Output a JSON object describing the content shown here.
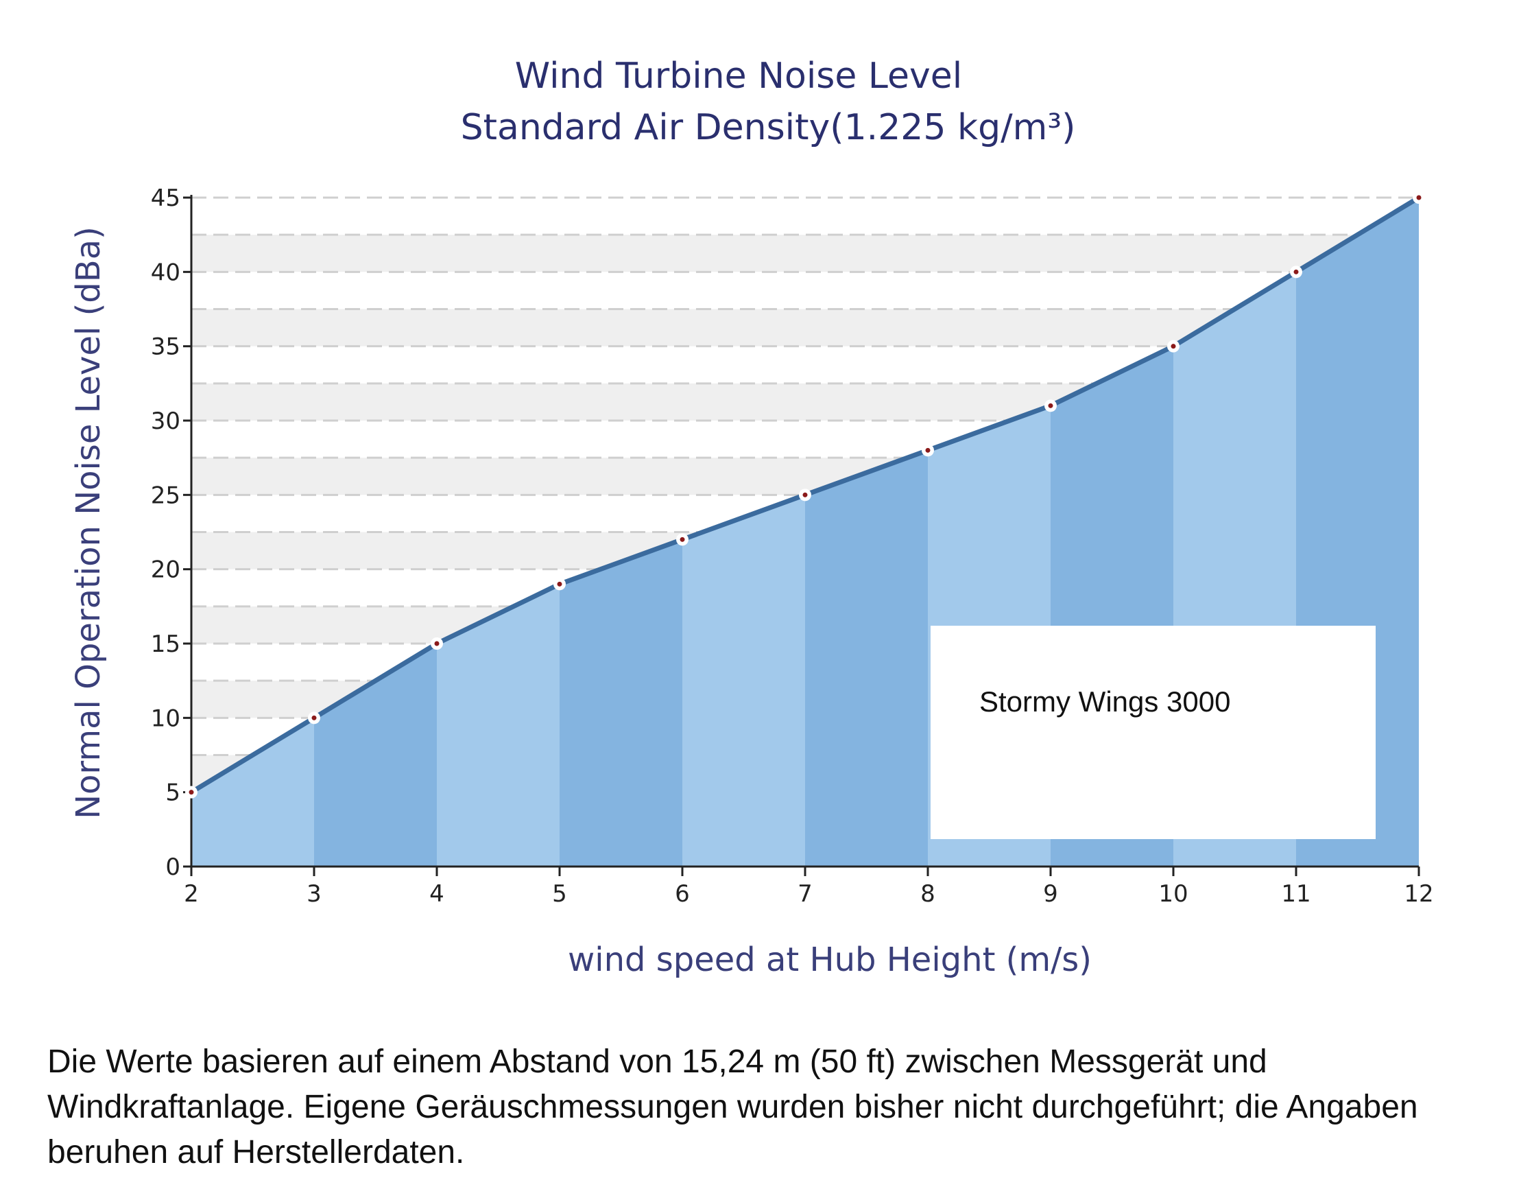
{
  "chart_data": {
    "type": "area",
    "title": "Wind Turbine Noise Level",
    "subtitle": "Standard Air Density(1.225 kg/m³)",
    "xlabel": "wind speed at Hub Height  (m/s)",
    "ylabel": "Normal Operation Noise  Level (dBa)",
    "x": [
      2,
      3,
      4,
      5,
      6,
      7,
      8,
      9,
      10,
      11,
      12
    ],
    "series": [
      {
        "values": [
          5,
          10,
          15,
          19,
          22,
          25,
          28,
          31,
          35,
          40,
          45
        ]
      }
    ],
    "xlim": [
      2,
      12
    ],
    "ylim": [
      0,
      45
    ],
    "xticks": [
      2,
      3,
      4,
      5,
      6,
      7,
      8,
      9,
      10,
      11,
      12
    ],
    "yticks": [
      0,
      5,
      10,
      15,
      20,
      25,
      30,
      35,
      40,
      45
    ],
    "grid": "horizontal dashed",
    "annotation": "Stormy Wings 3000",
    "colors": {
      "fill_light": "#a2c9eb",
      "fill_dark": "#84b4e0",
      "line": "#3b6b9e",
      "marker": "#8b1a1a",
      "title": "#2a2f6e"
    }
  },
  "note": "Die Werte basieren auf einem Abstand von 15,24 m (50 ft) zwischen Messgerät und Windkraftanlage. Eigene Geräuschmessungen wurden bisher nicht durchgeführt; die Angaben beruhen auf Herstellerdaten."
}
